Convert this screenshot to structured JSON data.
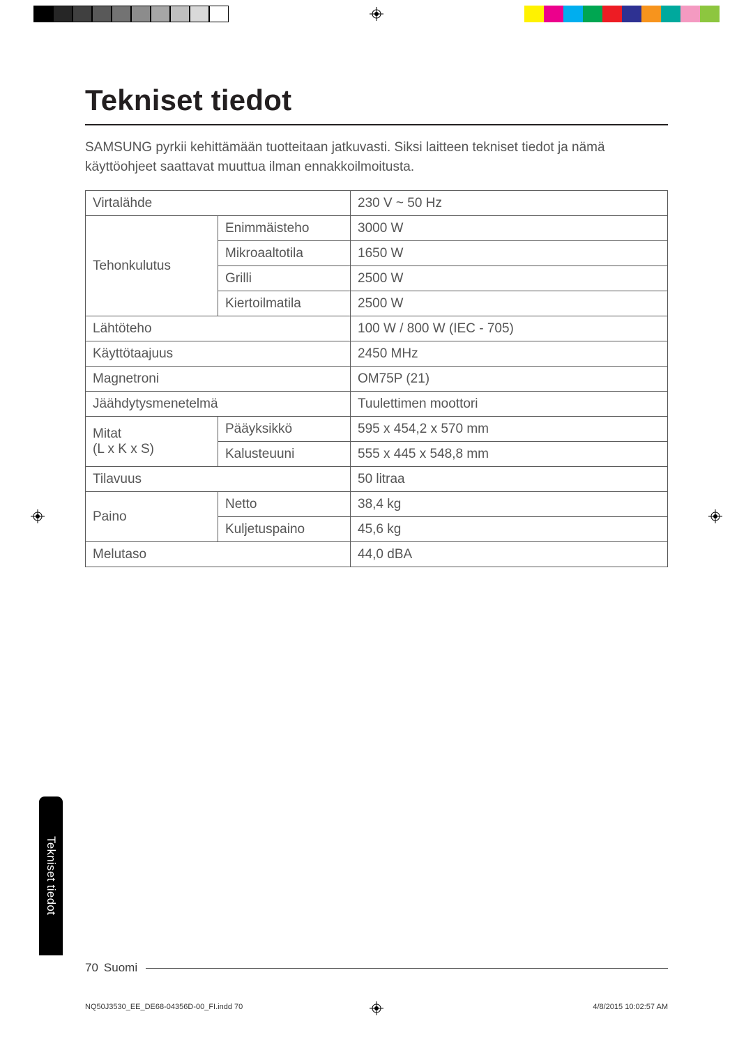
{
  "colorbar": {
    "grays": [
      "#000000",
      "#262626",
      "#404040",
      "#595959",
      "#737373",
      "#8c8c8c",
      "#a6a6a6",
      "#bfbfbf",
      "#d9d9d9",
      "#ffffff"
    ],
    "gray_border": "#000000",
    "colors": [
      "#fff200",
      "#ec008c",
      "#00aeef",
      "#00a651",
      "#ed1c24",
      "#2e3192",
      "#f7941d",
      "#00a99d",
      "#f49ac1",
      "#8dc63f"
    ]
  },
  "title": "Tekniset tiedot",
  "intro": "SAMSUNG pyrkii kehittämään tuotteitaan jatkuvasti. Siksi laitteen tekniset tiedot ja nämä käyttöohjeet saattavat muuttua ilman ennakkoilmoitusta.",
  "table": {
    "rows": [
      {
        "a": "Virtalähde",
        "a_span": 2,
        "c": "230 V ~ 50 Hz"
      },
      {
        "a": "Tehonkulutus",
        "a_rows": 4,
        "b": "Enimmäisteho",
        "c": "3000 W"
      },
      {
        "b": "Mikroaaltotila",
        "c": "1650 W"
      },
      {
        "b": "Grilli",
        "c": "2500 W"
      },
      {
        "b": "Kiertoilmatila",
        "c": "2500 W"
      },
      {
        "a": "Lähtöteho",
        "a_span": 2,
        "c": "100 W / 800 W (IEC - 705)"
      },
      {
        "a": "Käyttötaajuus",
        "a_span": 2,
        "c": "2450 MHz"
      },
      {
        "a": "Magnetroni",
        "a_span": 2,
        "c": "OM75P (21)"
      },
      {
        "a": "Jäähdytysmenetelmä",
        "a_span": 2,
        "c": "Tuulettimen moottori"
      },
      {
        "a": "Mitat\n(L x K x S)",
        "a_rows": 2,
        "b": "Pääyksikkö",
        "c": "595 x 454,2 x 570 mm"
      },
      {
        "b": "Kalusteuuni",
        "c": "555 x 445 x 548,8 mm"
      },
      {
        "a": "Tilavuus",
        "a_span": 2,
        "c": "50 litraa"
      },
      {
        "a": "Paino",
        "a_rows": 2,
        "b": "Netto",
        "c": "38,4 kg"
      },
      {
        "b": "Kuljetuspaino",
        "c": "45,6 kg"
      },
      {
        "a": "Melutaso",
        "a_span": 2,
        "c": "44,0 dBA"
      }
    ]
  },
  "sidetab": "Tekniset tiedot",
  "footer": {
    "page": "70",
    "lang": "Suomi"
  },
  "indd": {
    "file": "NQ50J3530_EE_DE68-04356D-00_FI.indd   70",
    "stamp": "4/8/2015   10:02:57 AM"
  }
}
